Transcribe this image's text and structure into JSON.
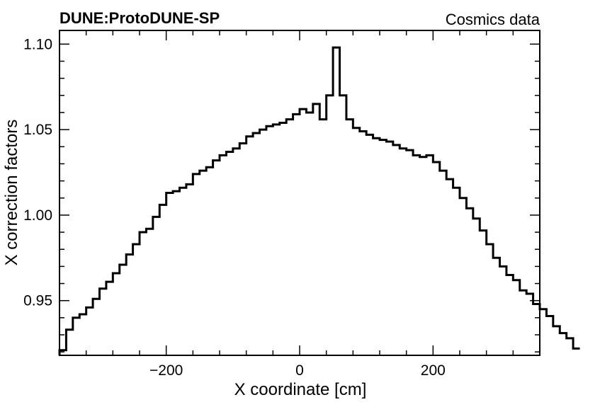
{
  "header": {
    "experiment": "DUNE:ProtoDUNE-SP",
    "dataset": "Cosmics data"
  },
  "chart_data": {
    "type": "line",
    "style": "step-histogram",
    "xlabel": "X coordinate [cm]",
    "ylabel": "X correction factors",
    "xlim": [
      -360,
      360
    ],
    "ylim": [
      0.918,
      1.108
    ],
    "x_ticks": [
      -200,
      0,
      200
    ],
    "x_tick_labels": [
      "−200",
      "0",
      "200"
    ],
    "y_ticks": [
      0.95,
      1.0,
      1.05,
      1.1
    ],
    "y_tick_labels": [
      "0.95",
      "1.00",
      "1.05",
      "1.10"
    ],
    "grid": false,
    "color": "#000000",
    "bin_width": 10,
    "bin_edges_start": -360,
    "values": [
      0.921,
      0.933,
      0.94,
      0.942,
      0.946,
      0.951,
      0.957,
      0.961,
      0.966,
      0.971,
      0.977,
      0.983,
      0.99,
      0.992,
      0.999,
      1.006,
      1.013,
      1.014,
      1.016,
      1.018,
      1.024,
      1.026,
      1.028,
      1.032,
      1.035,
      1.037,
      1.039,
      1.042,
      1.046,
      1.048,
      1.05,
      1.052,
      1.053,
      1.054,
      1.056,
      1.059,
      1.062,
      1.06,
      1.065,
      1.056,
      1.07,
      1.098,
      1.07,
      1.056,
      1.051,
      1.049,
      1.047,
      1.045,
      1.044,
      1.043,
      1.041,
      1.039,
      1.038,
      1.035,
      1.034,
      1.035,
      1.031,
      1.026,
      1.021,
      1.016,
      1.01,
      1.004,
      0.998,
      0.991,
      0.983,
      0.975,
      0.97,
      0.965,
      0.962,
      0.956,
      0.954,
      0.948,
      0.945,
      0.941,
      0.935,
      0.931,
      0.928,
      0.922
    ]
  }
}
